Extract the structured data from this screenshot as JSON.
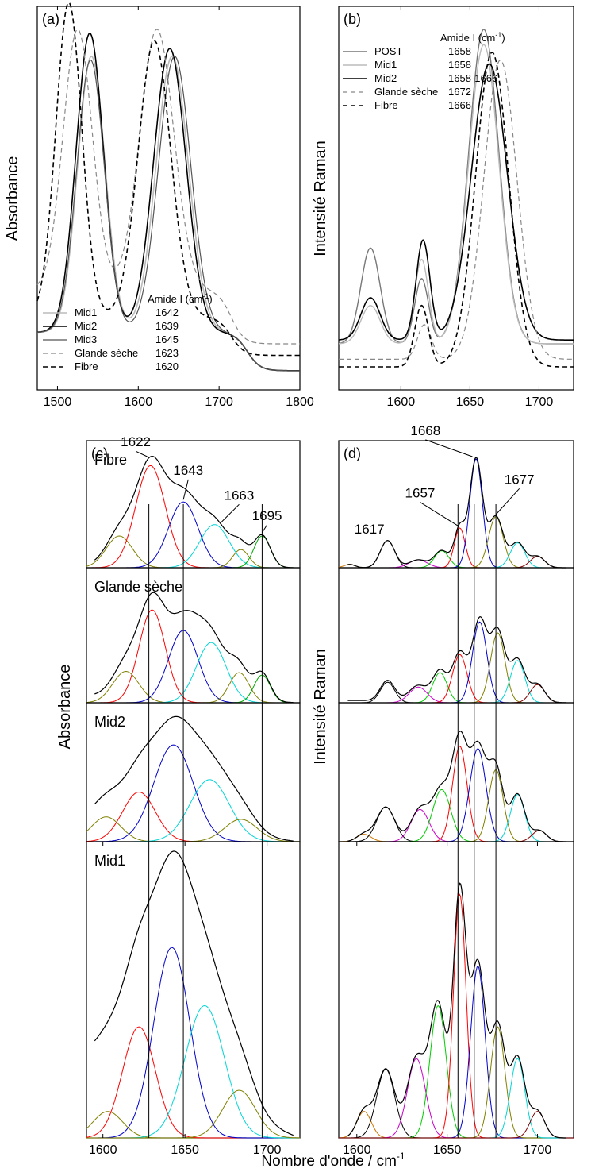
{
  "figure": {
    "xlabel_common": "Nombre d'onde / cm",
    "xlabel_sup": "-1"
  },
  "chart_data": [
    {
      "id": "a",
      "type": "line",
      "panel_label": "(a)",
      "ylabel": "Absorbance",
      "xlim": [
        1475,
        1800
      ],
      "ylim": [
        0,
        1
      ],
      "x_ticks": [
        1500,
        1600,
        1700,
        1800
      ],
      "legend": {
        "position": "bottom-left",
        "header": "Amide I (cm",
        "header_sup": "-1",
        "header_tail": ")"
      },
      "series": [
        {
          "name": "Mid1",
          "amide": "1642",
          "color": "#bbbbbb",
          "dash": "solid",
          "width": 1.6,
          "peaks": [
            [
              1542,
              0.72,
              17
            ],
            [
              1642,
              0.72,
              20
            ]
          ],
          "baseline": 0.05,
          "tail": [
            1735,
            0.1
          ]
        },
        {
          "name": "Mid2",
          "amide": "1639",
          "color": "#000000",
          "dash": "solid",
          "width": 1.6,
          "peaks": [
            [
              1540,
              0.78,
              17
            ],
            [
              1639,
              0.74,
              20
            ]
          ],
          "baseline": 0.05,
          "tail": [
            1735,
            0.1
          ]
        },
        {
          "name": "Mid3",
          "amide": "1645",
          "color": "#555555",
          "dash": "solid",
          "width": 1.2,
          "peaks": [
            [
              1541,
              0.71,
              17
            ],
            [
              1645,
              0.72,
              20
            ]
          ],
          "baseline": 0.05,
          "tail": [
            1735,
            0.1
          ]
        },
        {
          "name": "Glande sèche",
          "amide": "1623",
          "color": "#888888",
          "dash": "dashed",
          "width": 1.2,
          "peaks": [
            [
              1525,
              0.68,
              18
            ],
            [
              1623,
              0.68,
              21
            ]
          ],
          "baseline": 0.12,
          "tail": [
            1715,
            0.14
          ]
        },
        {
          "name": "Fibre",
          "amide": "1620",
          "color": "#000000",
          "dash": "dashed",
          "width": 1.6,
          "peaks": [
            [
              1514,
              0.82,
              16
            ],
            [
              1620,
              0.72,
              20
            ]
          ],
          "baseline": 0.09,
          "tail": [
            1715,
            0.1
          ]
        }
      ]
    },
    {
      "id": "b",
      "type": "line",
      "panel_label": "(b)",
      "ylabel": "Intensité Raman",
      "xlim": [
        1555,
        1725
      ],
      "ylim": [
        0,
        1
      ],
      "x_ticks": [
        1600,
        1650,
        1700
      ],
      "legend": {
        "position": "top-left",
        "header": "Amide I (cm",
        "header_sup": "-1",
        "header_tail": ")"
      },
      "series": [
        {
          "name": "POST",
          "amide": "1658",
          "color": "#777777",
          "dash": "solid",
          "width": 1.4,
          "peaks": [
            [
              1578,
              0.25,
              7
            ],
            [
              1615,
              0.17,
              5
            ],
            [
              1660,
              0.82,
              11
            ]
          ],
          "baseline": 0.12
        },
        {
          "name": "Mid1",
          "amide": "1658",
          "color": "#bbbbbb",
          "dash": "solid",
          "width": 1.4,
          "peaks": [
            [
              1578,
              0.1,
              7
            ],
            [
              1615,
              0.22,
              5
            ],
            [
              1660,
              0.78,
              11
            ]
          ],
          "baseline": 0.12
        },
        {
          "name": "Mid2",
          "amide": "1658-1666",
          "color": "#000000",
          "dash": "solid",
          "width": 1.6,
          "peaks": [
            [
              1578,
              0.11,
              7
            ],
            [
              1616,
              0.26,
              5
            ],
            [
              1664,
              0.72,
              13
            ]
          ],
          "baseline": 0.13
        },
        {
          "name": "Glande sèche",
          "amide": "1672",
          "color": "#888888",
          "dash": "dashed",
          "width": 1.2,
          "peaks": [
            [
              1617,
              0.09,
              5
            ],
            [
              1672,
              0.78,
              12
            ]
          ],
          "baseline": 0.08
        },
        {
          "name": "Fibre",
          "amide": "1666",
          "color": "#000000",
          "dash": "dashed",
          "width": 1.6,
          "peaks": [
            [
              1615,
              0.16,
              5
            ],
            [
              1666,
              0.82,
              12
            ]
          ],
          "baseline": 0.06
        }
      ]
    },
    {
      "id": "c",
      "type": "line",
      "panel_label": "(c)",
      "ylabel": "Absorbance",
      "xlim": [
        1590,
        1720
      ],
      "ylim": [
        0,
        1
      ],
      "x_ticks": [
        1600,
        1650,
        1700
      ],
      "vlines": [
        1628,
        1649,
        1697
      ],
      "subplots": [
        {
          "name": "Fibre",
          "components": [
            [
              1610,
              0.28,
              8,
              "#808000"
            ],
            [
              1629,
              0.9,
              9,
              "#ff0000"
            ],
            [
              1649,
              0.58,
              9,
              "#0000cc"
            ],
            [
              1668,
              0.38,
              9,
              "#00d6d6"
            ],
            [
              1684,
              0.16,
              5,
              "#808000"
            ],
            [
              1697,
              0.28,
              5,
              "#00aa00"
            ]
          ],
          "envelope": "sum",
          "envelope_baseline": 0.02,
          "annotations": [
            {
              "text": "1622",
              "x": 1627,
              "y": 0.98,
              "tx": 1620,
              "ty": 1.07
            },
            {
              "text": "1643",
              "x": 1649,
              "y": 0.6,
              "tx": 1652,
              "ty": 0.82
            },
            {
              "text": "1663",
              "x": 1672,
              "y": 0.4,
              "tx": 1683,
              "ty": 0.6
            },
            {
              "text": "1695",
              "x": 1697,
              "y": 0.31,
              "tx": 1700,
              "ty": 0.42
            }
          ]
        },
        {
          "name": "Glande sèche",
          "components": [
            [
              1614,
              0.26,
              8,
              "#808000"
            ],
            [
              1630,
              0.77,
              8,
              "#ff0000"
            ],
            [
              1649,
              0.6,
              9,
              "#0000cc"
            ],
            [
              1666,
              0.5,
              9,
              "#00d6d6"
            ],
            [
              1683,
              0.25,
              6,
              "#808000"
            ],
            [
              1697,
              0.23,
              5,
              "#00aa00"
            ]
          ],
          "envelope": "sum",
          "envelope_baseline": 0.06
        },
        {
          "name": "Mid2",
          "components": [
            [
              1602,
              0.2,
              9,
              "#808000"
            ],
            [
              1622,
              0.4,
              10,
              "#ff0000"
            ],
            [
              1643,
              0.78,
              12,
              "#0000cc"
            ],
            [
              1665,
              0.5,
              12,
              "#00d6d6"
            ],
            [
              1684,
              0.18,
              10,
              "#808000"
            ]
          ],
          "envelope": "sum",
          "envelope_baseline": 0.15
        },
        {
          "name": "Mid1",
          "components": [
            [
              1603,
              0.1,
              9,
              "#808000"
            ],
            [
              1622,
              0.42,
              10,
              "#ff0000"
            ],
            [
              1642,
              0.72,
              11,
              "#0000cc"
            ],
            [
              1662,
              0.5,
              12,
              "#00d6d6"
            ],
            [
              1683,
              0.18,
              10,
              "#808000"
            ]
          ],
          "envelope": "sum",
          "envelope_baseline": 0.3
        }
      ]
    },
    {
      "id": "d",
      "type": "line",
      "panel_label": "(d)",
      "ylabel": "Intensité Raman",
      "xlim": [
        1590,
        1720
      ],
      "ylim": [
        0,
        1
      ],
      "x_ticks": [
        1600,
        1650,
        1700
      ],
      "vlines": [
        1656,
        1665,
        1677
      ],
      "subplots": [
        {
          "components": [
            [
              1596,
              0.03,
              3,
              "#cc7700"
            ],
            [
              1617,
              0.24,
              4,
              "#000000"
            ],
            [
              1634,
              0.07,
              5,
              "#cc00cc"
            ],
            [
              1647,
              0.15,
              4,
              "#00cc00"
            ],
            [
              1657,
              0.35,
              3,
              "#ff0000"
            ],
            [
              1666,
              0.96,
              3.5,
              "#0000cc"
            ],
            [
              1677,
              0.45,
              4,
              "#808000"
            ],
            [
              1689,
              0.22,
              4,
              "#00d6d6"
            ],
            [
              1700,
              0.1,
              4,
              "#800000"
            ]
          ],
          "envelope": "sum",
          "annotations": [
            {
              "text": "1617",
              "x": 1617,
              "y": 0.26,
              "tx": 1607,
              "ty": 0.3,
              "no_line": true
            },
            {
              "text": "1657",
              "x": 1656,
              "y": 0.37,
              "tx": 1635,
              "ty": 0.62
            },
            {
              "text": "1668",
              "x": 1664,
              "y": 0.98,
              "tx": 1638,
              "ty": 1.17
            },
            {
              "text": "1677",
              "x": 1677,
              "y": 0.47,
              "tx": 1690,
              "ty": 0.74
            }
          ]
        },
        {
          "components": [
            [
              1617,
              0.17,
              4,
              "#000000"
            ],
            [
              1634,
              0.13,
              5,
              "#cc00cc"
            ],
            [
              1646,
              0.25,
              4,
              "#00cc00"
            ],
            [
              1657,
              0.4,
              4,
              "#ff0000"
            ],
            [
              1668,
              0.67,
              4,
              "#0000cc"
            ],
            [
              1678,
              0.58,
              4,
              "#808000"
            ],
            [
              1689,
              0.35,
              4,
              "#00d6d6"
            ],
            [
              1700,
              0.15,
              4,
              "#800000"
            ]
          ],
          "envelope": "sum",
          "envelope_baseline": 0.02
        },
        {
          "components": [
            [
              1604,
              0.06,
              4,
              "#cc7700"
            ],
            [
              1616,
              0.28,
              5,
              "#000000"
            ],
            [
              1635,
              0.26,
              5,
              "#cc00cc"
            ],
            [
              1647,
              0.42,
              5,
              "#00cc00"
            ],
            [
              1657,
              0.77,
              4,
              "#ff0000"
            ],
            [
              1667,
              0.75,
              4.5,
              "#0000cc"
            ],
            [
              1677,
              0.58,
              4,
              "#808000"
            ],
            [
              1689,
              0.38,
              4,
              "#00d6d6"
            ],
            [
              1701,
              0.09,
              4,
              "#800000"
            ]
          ],
          "envelope": "sum"
        },
        {
          "components": [
            [
              1604,
              0.1,
              4,
              "#cc7700"
            ],
            [
              1616,
              0.26,
              5,
              "#000000"
            ],
            [
              1633,
              0.3,
              5,
              "#cc00cc"
            ],
            [
              1645,
              0.5,
              4.5,
              "#00cc00"
            ],
            [
              1657,
              0.92,
              3.5,
              "#ff0000"
            ],
            [
              1667,
              0.65,
              4,
              "#0000cc"
            ],
            [
              1678,
              0.42,
              4,
              "#808000"
            ],
            [
              1689,
              0.3,
              4,
              "#00d6d6"
            ],
            [
              1700,
              0.1,
              4,
              "#800000"
            ]
          ],
          "envelope": "sum"
        }
      ]
    }
  ]
}
